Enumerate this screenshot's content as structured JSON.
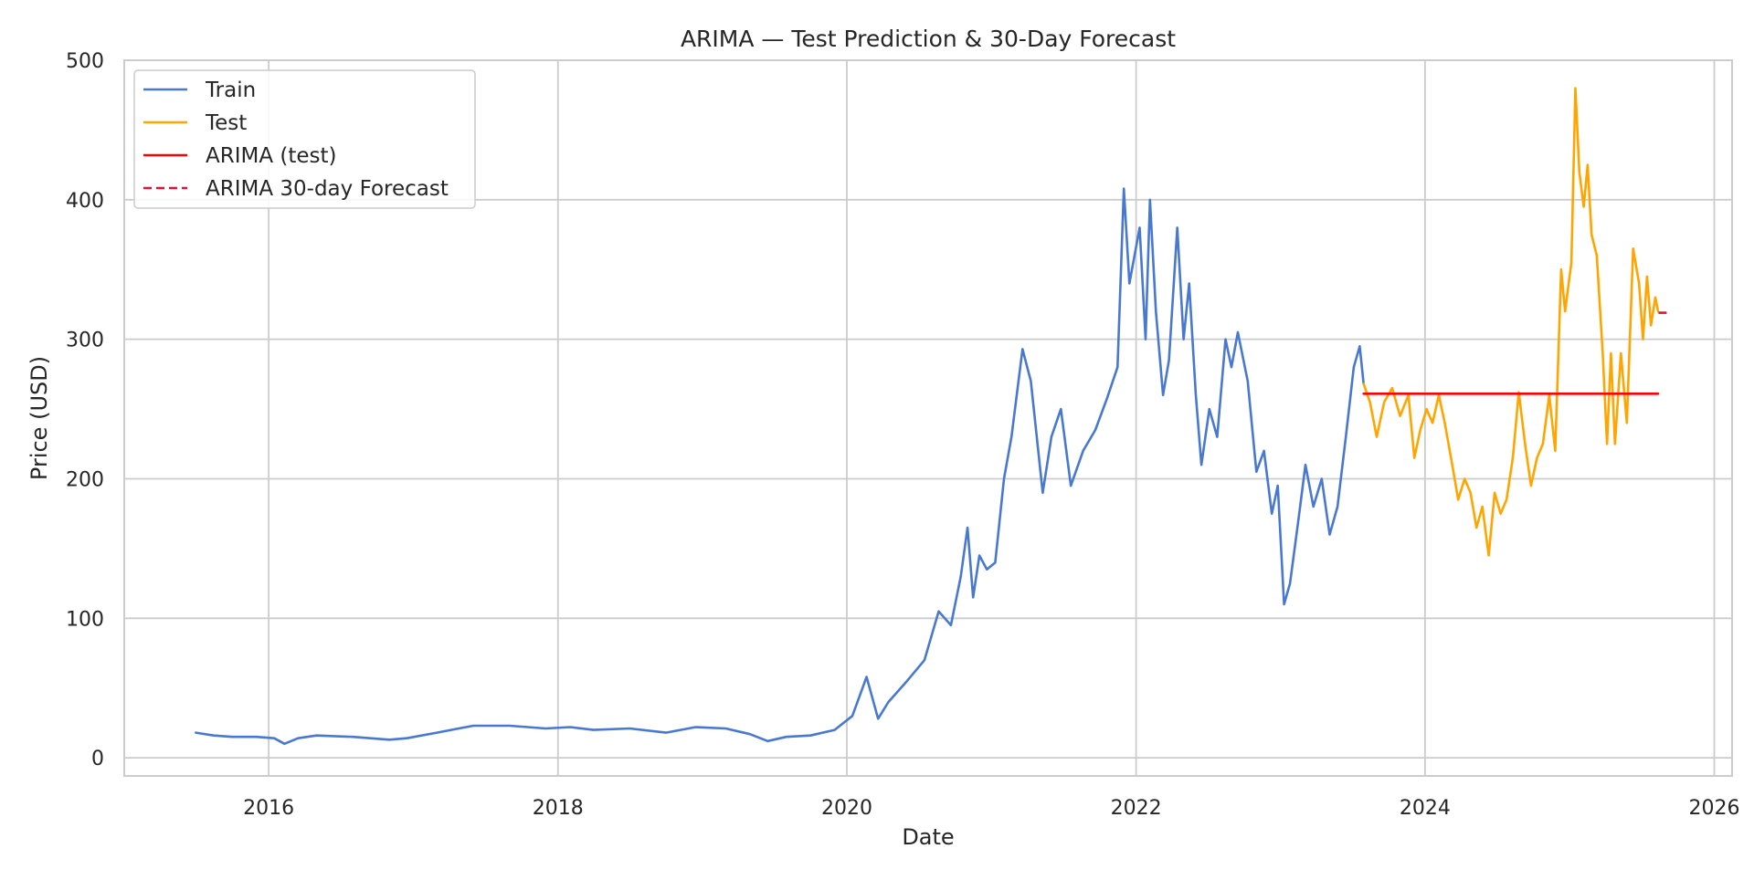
{
  "chart_data": {
    "type": "line",
    "title": "ARIMA — Test Prediction & 30-Day Forecast",
    "xlabel": "Date",
    "ylabel": "Price (USD)",
    "xlim": [
      "2015-01-01",
      "2026-02-15"
    ],
    "ylim": [
      -13,
      500
    ],
    "grid": true,
    "legend_position": "top-left",
    "x_ticks": [
      "2016",
      "2018",
      "2020",
      "2022",
      "2024",
      "2026"
    ],
    "y_ticks": [
      "0",
      "100",
      "200",
      "300",
      "400",
      "500"
    ],
    "colors": {
      "train": "#4878d0",
      "test": "#ffa500",
      "arima_test": "#ff0000",
      "forecast": "#dc143c",
      "grid": "#cccccc",
      "frame": "#cccccc"
    },
    "series": [
      {
        "name": "Train",
        "style": "solid",
        "color": "#4878d0",
        "points": [
          [
            "2015-07-01",
            18
          ],
          [
            "2015-08-15",
            16
          ],
          [
            "2015-10-01",
            15
          ],
          [
            "2015-12-01",
            15
          ],
          [
            "2016-01-15",
            14
          ],
          [
            "2016-02-10",
            10
          ],
          [
            "2016-03-15",
            14
          ],
          [
            "2016-05-01",
            16
          ],
          [
            "2016-08-01",
            15
          ],
          [
            "2016-11-01",
            13
          ],
          [
            "2016-12-15",
            14
          ],
          [
            "2017-03-01",
            18
          ],
          [
            "2017-06-01",
            23
          ],
          [
            "2017-09-01",
            23
          ],
          [
            "2017-12-01",
            21
          ],
          [
            "2018-02-01",
            22
          ],
          [
            "2018-04-01",
            20
          ],
          [
            "2018-07-01",
            21
          ],
          [
            "2018-10-01",
            18
          ],
          [
            "2018-12-15",
            22
          ],
          [
            "2019-03-01",
            21
          ],
          [
            "2019-05-01",
            17
          ],
          [
            "2019-06-15",
            12
          ],
          [
            "2019-08-01",
            15
          ],
          [
            "2019-10-01",
            16
          ],
          [
            "2019-12-01",
            20
          ],
          [
            "2020-01-15",
            30
          ],
          [
            "2020-02-20",
            58
          ],
          [
            "2020-03-20",
            28
          ],
          [
            "2020-04-15",
            40
          ],
          [
            "2020-06-01",
            55
          ],
          [
            "2020-07-15",
            70
          ],
          [
            "2020-08-20",
            105
          ],
          [
            "2020-09-20",
            95
          ],
          [
            "2020-10-15",
            130
          ],
          [
            "2020-11-01",
            165
          ],
          [
            "2020-11-15",
            115
          ],
          [
            "2020-12-01",
            145
          ],
          [
            "2020-12-20",
            135
          ],
          [
            "2021-01-10",
            140
          ],
          [
            "2021-02-01",
            200
          ],
          [
            "2021-02-20",
            230
          ],
          [
            "2021-03-20",
            293
          ],
          [
            "2021-04-10",
            270
          ],
          [
            "2021-05-10",
            190
          ],
          [
            "2021-06-01",
            230
          ],
          [
            "2021-06-25",
            250
          ],
          [
            "2021-07-20",
            195
          ],
          [
            "2021-08-20",
            220
          ],
          [
            "2021-09-20",
            235
          ],
          [
            "2021-10-20",
            258
          ],
          [
            "2021-11-15",
            280
          ],
          [
            "2021-12-01",
            408
          ],
          [
            "2021-12-15",
            340
          ],
          [
            "2022-01-10",
            380
          ],
          [
            "2022-01-25",
            300
          ],
          [
            "2022-02-05",
            400
          ],
          [
            "2022-02-20",
            320
          ],
          [
            "2022-03-10",
            260
          ],
          [
            "2022-03-25",
            285
          ],
          [
            "2022-04-15",
            380
          ],
          [
            "2022-05-01",
            300
          ],
          [
            "2022-05-15",
            340
          ],
          [
            "2022-06-01",
            260
          ],
          [
            "2022-06-15",
            210
          ],
          [
            "2022-07-05",
            250
          ],
          [
            "2022-07-25",
            230
          ],
          [
            "2022-08-15",
            300
          ],
          [
            "2022-08-30",
            280
          ],
          [
            "2022-09-15",
            305
          ],
          [
            "2022-10-10",
            270
          ],
          [
            "2022-11-01",
            205
          ],
          [
            "2022-11-20",
            220
          ],
          [
            "2022-12-10",
            175
          ],
          [
            "2022-12-25",
            195
          ],
          [
            "2023-01-10",
            110
          ],
          [
            "2023-01-25",
            125
          ],
          [
            "2023-02-15",
            170
          ],
          [
            "2023-03-05",
            210
          ],
          [
            "2023-03-25",
            180
          ],
          [
            "2023-04-15",
            200
          ],
          [
            "2023-05-05",
            160
          ],
          [
            "2023-05-25",
            180
          ],
          [
            "2023-06-15",
            230
          ],
          [
            "2023-07-05",
            280
          ],
          [
            "2023-07-20",
            295
          ],
          [
            "2023-07-30",
            268
          ]
        ]
      },
      {
        "name": "Test",
        "style": "solid",
        "color": "#ffa500",
        "points": [
          [
            "2023-07-30",
            268
          ],
          [
            "2023-08-15",
            255
          ],
          [
            "2023-09-01",
            230
          ],
          [
            "2023-09-20",
            255
          ],
          [
            "2023-10-10",
            265
          ],
          [
            "2023-10-30",
            245
          ],
          [
            "2023-11-20",
            260
          ],
          [
            "2023-12-05",
            215
          ],
          [
            "2023-12-20",
            235
          ],
          [
            "2024-01-05",
            250
          ],
          [
            "2024-01-20",
            240
          ],
          [
            "2024-02-05",
            260
          ],
          [
            "2024-02-20",
            240
          ],
          [
            "2024-03-10",
            210
          ],
          [
            "2024-03-25",
            185
          ],
          [
            "2024-04-10",
            200
          ],
          [
            "2024-04-25",
            190
          ],
          [
            "2024-05-10",
            165
          ],
          [
            "2024-05-25",
            180
          ],
          [
            "2024-06-10",
            145
          ],
          [
            "2024-06-25",
            190
          ],
          [
            "2024-07-10",
            175
          ],
          [
            "2024-07-25",
            185
          ],
          [
            "2024-08-10",
            215
          ],
          [
            "2024-08-25",
            262
          ],
          [
            "2024-09-10",
            225
          ],
          [
            "2024-09-25",
            195
          ],
          [
            "2024-10-10",
            215
          ],
          [
            "2024-10-25",
            225
          ],
          [
            "2024-11-10",
            260
          ],
          [
            "2024-11-25",
            220
          ],
          [
            "2024-12-10",
            350
          ],
          [
            "2024-12-20",
            320
          ],
          [
            "2025-01-05",
            355
          ],
          [
            "2025-01-15",
            480
          ],
          [
            "2025-01-25",
            420
          ],
          [
            "2025-02-05",
            395
          ],
          [
            "2025-02-15",
            425
          ],
          [
            "2025-02-25",
            375
          ],
          [
            "2025-03-10",
            360
          ],
          [
            "2025-03-25",
            290
          ],
          [
            "2025-04-05",
            225
          ],
          [
            "2025-04-15",
            290
          ],
          [
            "2025-04-25",
            225
          ],
          [
            "2025-05-10",
            290
          ],
          [
            "2025-05-25",
            240
          ],
          [
            "2025-06-10",
            365
          ],
          [
            "2025-06-25",
            340
          ],
          [
            "2025-07-05",
            300
          ],
          [
            "2025-07-15",
            345
          ],
          [
            "2025-07-25",
            310
          ],
          [
            "2025-08-05",
            330
          ],
          [
            "2025-08-12",
            320
          ]
        ]
      },
      {
        "name": "ARIMA (test)",
        "style": "solid",
        "color": "#ff0000",
        "points": [
          [
            "2023-07-30",
            261
          ],
          [
            "2025-08-12",
            261
          ]
        ]
      },
      {
        "name": "ARIMA 30-day Forecast",
        "style": "dashed",
        "color": "#dc143c",
        "points": [
          [
            "2025-08-13",
            319
          ],
          [
            "2025-09-12",
            319
          ]
        ]
      }
    ]
  }
}
